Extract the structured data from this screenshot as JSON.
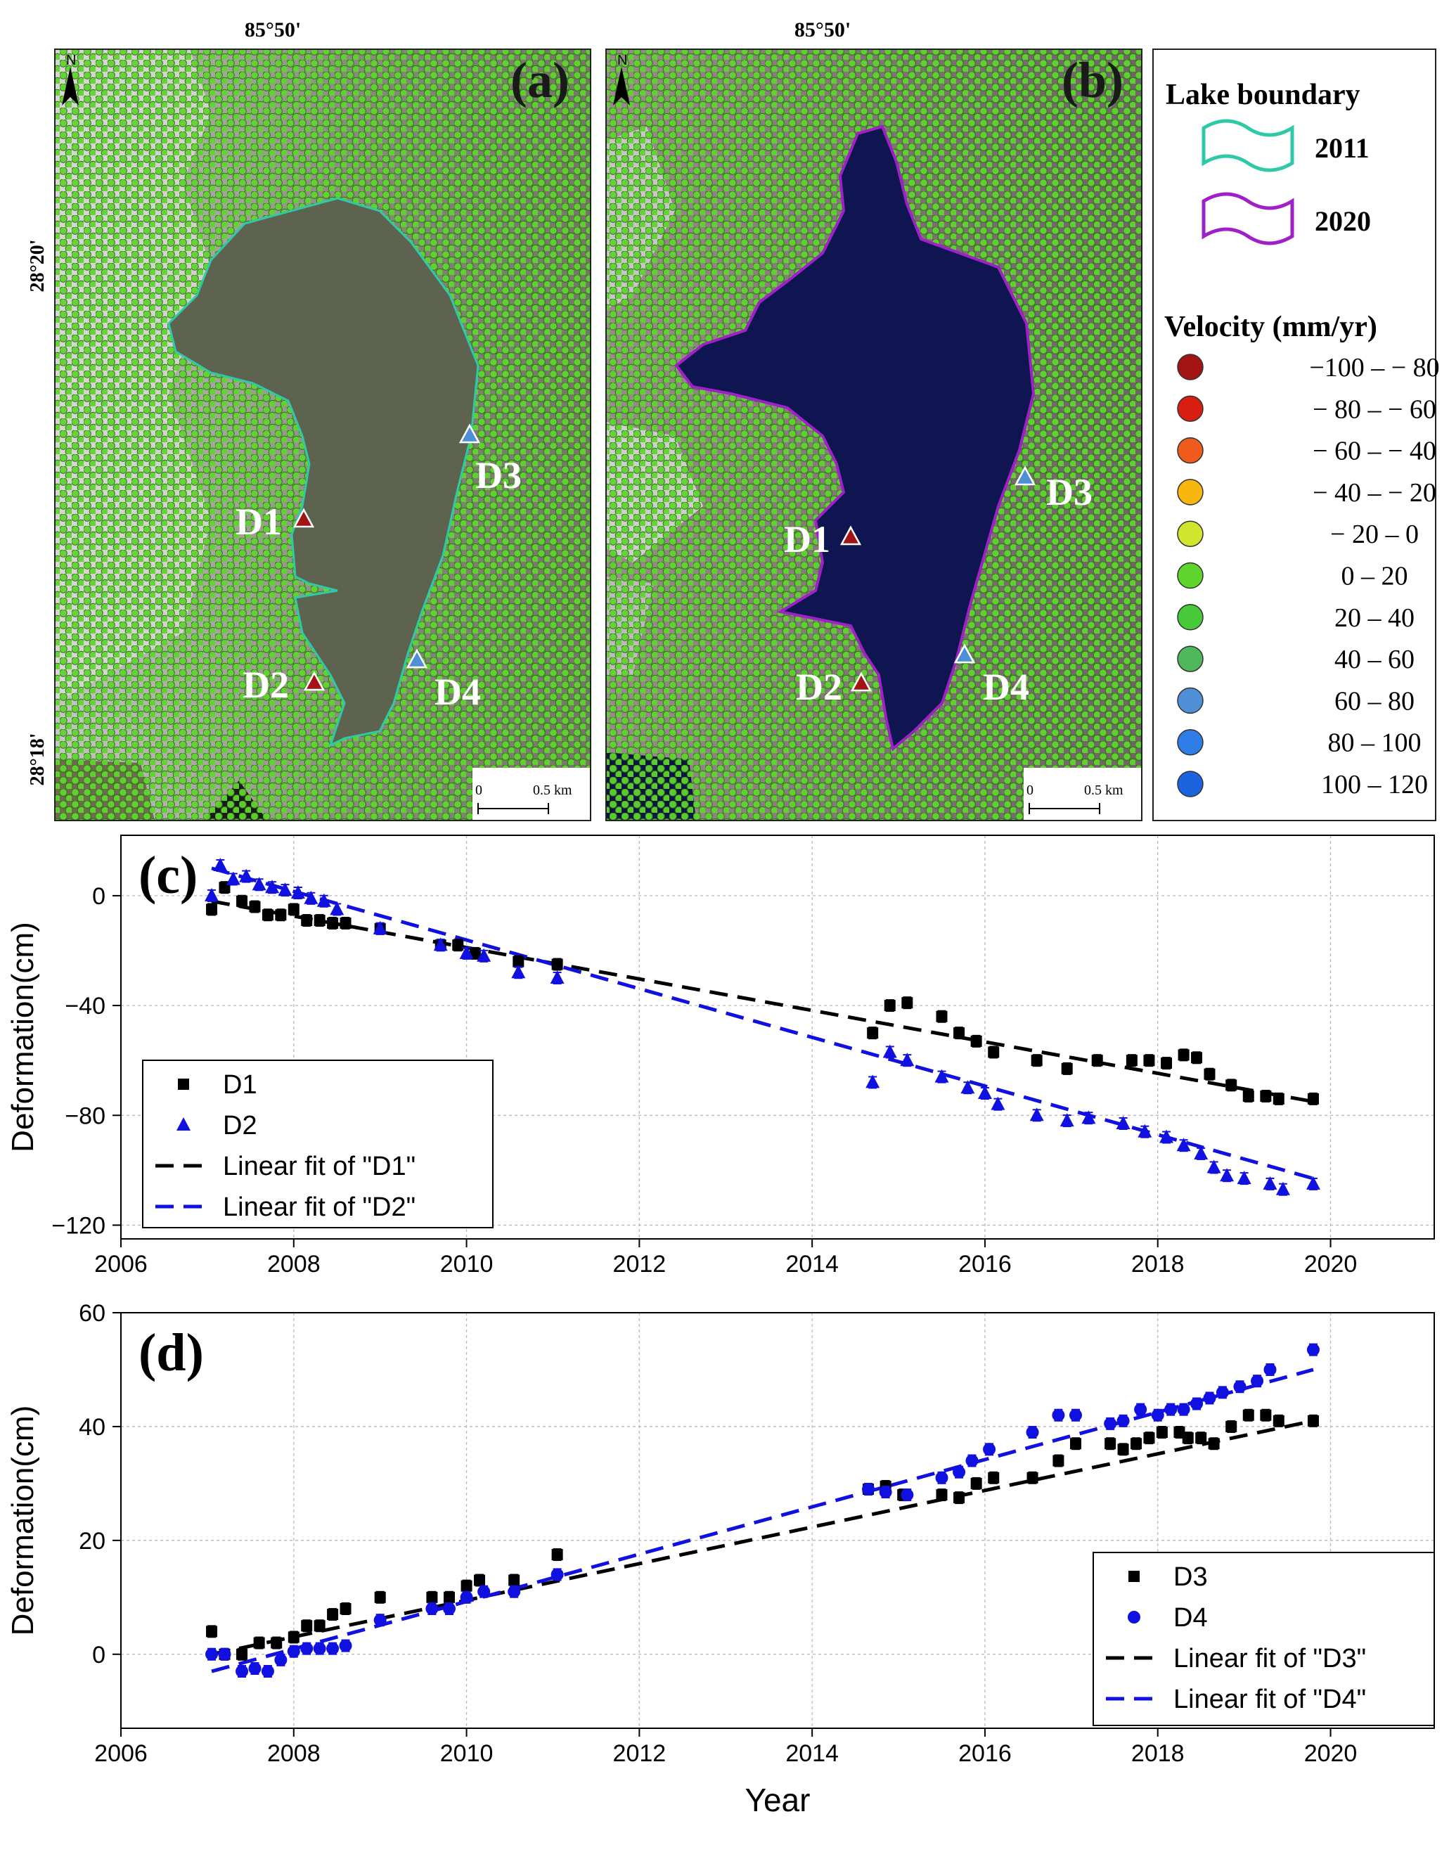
{
  "maps": {
    "a": {
      "panel_label": "(a)",
      "lon_label": "85°50'",
      "lat_top_label": "28°20'",
      "lat_bottom_label": "28°18'",
      "north_label": "N",
      "scale_zero": "0",
      "scale_len": "0.5 km",
      "markers": [
        "D1",
        "D2",
        "D3",
        "D4"
      ]
    },
    "b": {
      "panel_label": "(b)",
      "lon_label": "85°50'",
      "north_label": "N",
      "scale_zero": "0",
      "scale_len": "0.5 km",
      "markers": [
        "D1",
        "D2",
        "D3",
        "D4"
      ]
    }
  },
  "legend": {
    "lake_title": "Lake boundary",
    "lake_items": [
      {
        "label": "2011",
        "color": "#2ec9a7"
      },
      {
        "label": "2020",
        "color": "#a020c8"
      }
    ],
    "velocity_title": "Velocity (mm/yr)",
    "velocity_items": [
      {
        "label": "−100 – − 80",
        "color": "#a31515"
      },
      {
        "label": "− 80 – − 60",
        "color": "#d81e10"
      },
      {
        "label": "− 60 – − 40",
        "color": "#ee5b1d"
      },
      {
        "label": "− 40 – − 20",
        "color": "#f7b70e"
      },
      {
        "label": "− 20 –    0",
        "color": "#cfe62c"
      },
      {
        "label": "0 –  20",
        "color": "#5ed52d"
      },
      {
        "label": "20 –  40",
        "color": "#48c93a"
      },
      {
        "label": "40 –  60",
        "color": "#4fb85b"
      },
      {
        "label": "60 –  80",
        "color": "#4e8fd6"
      },
      {
        "label": "80 – 100",
        "color": "#2f7de6"
      },
      {
        "label": "100 – 120",
        "color": "#1c63e0"
      }
    ]
  },
  "chart_data": [
    {
      "panel_label": "(c)",
      "type": "scatter",
      "xlabel": "",
      "ylabel": "Deformation(cm)",
      "xlim": [
        2006,
        2021.2
      ],
      "ylim": [
        -125,
        22
      ],
      "xticks": [
        2006,
        2008,
        2010,
        2012,
        2014,
        2016,
        2018,
        2020
      ],
      "yticks": [
        0,
        -40,
        -80,
        -120
      ],
      "ytick_labels": [
        "0",
        "−40",
        "−80",
        "−120"
      ],
      "legend_position": "bottom-left",
      "series": [
        {
          "name": "D1",
          "color": "#000000",
          "marker": "square",
          "x": [
            2007.05,
            2007.2,
            2007.4,
            2007.55,
            2007.7,
            2007.85,
            2008.0,
            2008.15,
            2008.3,
            2008.45,
            2008.6,
            2009.0,
            2009.7,
            2009.9,
            2010.1,
            2010.6,
            2011.05,
            2014.7,
            2014.9,
            2015.1,
            2015.5,
            2015.7,
            2015.9,
            2016.1,
            2016.6,
            2016.95,
            2017.3,
            2017.7,
            2017.9,
            2018.1,
            2018.3,
            2018.45,
            2018.6,
            2018.85,
            2019.05,
            2019.25,
            2019.4,
            2019.8
          ],
          "y": [
            -5,
            3,
            -2,
            -4,
            -7,
            -7,
            -5,
            -9,
            -9,
            -10,
            -10,
            -12,
            -18,
            -18,
            -21,
            -24,
            -25,
            -50,
            -40,
            -39,
            -44,
            -50,
            -53,
            -57,
            -60,
            -63,
            -60,
            -60,
            -60,
            -61,
            -58,
            -59,
            -65,
            -69,
            -73,
            -73,
            -74,
            -74
          ]
        },
        {
          "name": "D2",
          "color": "#1010e0",
          "marker": "triangle",
          "x": [
            2007.05,
            2007.15,
            2007.3,
            2007.45,
            2007.6,
            2007.75,
            2007.9,
            2008.05,
            2008.2,
            2008.35,
            2008.5,
            2009.0,
            2009.7,
            2010.0,
            2010.2,
            2010.6,
            2011.05,
            2014.7,
            2014.9,
            2015.1,
            2015.5,
            2015.8,
            2016.0,
            2016.15,
            2016.6,
            2016.95,
            2017.2,
            2017.6,
            2017.85,
            2018.1,
            2018.3,
            2018.5,
            2018.65,
            2018.8,
            2019.0,
            2019.3,
            2019.45,
            2019.8
          ],
          "y": [
            0,
            11,
            6,
            7,
            4,
            3,
            2,
            1,
            -1,
            -2,
            -5,
            -12,
            -18,
            -21,
            -22,
            -28,
            -30,
            -68,
            -57,
            -60,
            -66,
            -70,
            -72,
            -76,
            -80,
            -82,
            -81,
            -83,
            -86,
            -88,
            -91,
            -94,
            -99,
            -102,
            -103,
            -105,
            -107,
            -105
          ]
        },
        {
          "name": "Linear fit of \"D1\"",
          "color": "#000000",
          "style": "dashed",
          "x": [
            2007.05,
            2019.8
          ],
          "y": [
            -2,
            -75
          ]
        },
        {
          "name": "Linear fit of \"D2\"",
          "color": "#1010e0",
          "style": "dashed",
          "x": [
            2007.05,
            2019.8
          ],
          "y": [
            10,
            -103
          ]
        }
      ]
    },
    {
      "panel_label": "(d)",
      "type": "scatter",
      "xlabel": "Year",
      "ylabel": "Deformation(cm)",
      "xlim": [
        2006,
        2021.2
      ],
      "ylim": [
        -13,
        60
      ],
      "xticks": [
        2006,
        2008,
        2010,
        2012,
        2014,
        2016,
        2018,
        2020
      ],
      "yticks": [
        0,
        20,
        40,
        60
      ],
      "ytick_labels": [
        "0",
        "20",
        "40",
        "60"
      ],
      "legend_position": "bottom-right",
      "series": [
        {
          "name": "D3",
          "color": "#000000",
          "marker": "square",
          "x": [
            2007.05,
            2007.2,
            2007.4,
            2007.6,
            2007.8,
            2008.0,
            2008.15,
            2008.3,
            2008.45,
            2008.6,
            2009.0,
            2009.6,
            2009.8,
            2010.0,
            2010.15,
            2010.55,
            2011.05,
            2014.65,
            2014.85,
            2015.05,
            2015.5,
            2015.7,
            2015.9,
            2016.1,
            2016.55,
            2016.85,
            2017.05,
            2017.45,
            2017.6,
            2017.75,
            2017.9,
            2018.05,
            2018.25,
            2018.35,
            2018.5,
            2018.65,
            2018.85,
            2019.05,
            2019.25,
            2019.4,
            2019.8
          ],
          "y": [
            4,
            0,
            0,
            2,
            2,
            3,
            5,
            5,
            7,
            8,
            10,
            10,
            10,
            12,
            13,
            13,
            17.5,
            29,
            29.5,
            28,
            28,
            27.5,
            30,
            31,
            31,
            34,
            37,
            37,
            36,
            37,
            38,
            39,
            39,
            38,
            38,
            37,
            40,
            42,
            42,
            41,
            41
          ]
        },
        {
          "name": "D4",
          "color": "#1010e0",
          "marker": "circle",
          "x": [
            2007.05,
            2007.2,
            2007.4,
            2007.55,
            2007.7,
            2007.85,
            2008.0,
            2008.15,
            2008.3,
            2008.45,
            2008.6,
            2009.0,
            2009.6,
            2009.8,
            2010.0,
            2010.2,
            2010.55,
            2011.05,
            2014.65,
            2014.85,
            2015.1,
            2015.5,
            2015.7,
            2015.85,
            2016.05,
            2016.55,
            2016.85,
            2017.05,
            2017.45,
            2017.6,
            2017.8,
            2018.0,
            2018.15,
            2018.3,
            2018.45,
            2018.6,
            2018.75,
            2018.95,
            2019.15,
            2019.3,
            2019.8
          ],
          "y": [
            0,
            0,
            -3,
            -2.5,
            -3,
            -1,
            0.5,
            1,
            1,
            1,
            1.5,
            6,
            8,
            8,
            10,
            11,
            11,
            14,
            29,
            28.5,
            28,
            31,
            32,
            34,
            36,
            39,
            42,
            42,
            40.5,
            41,
            43,
            42,
            43,
            43,
            44,
            45,
            46,
            47,
            48,
            50,
            53.5
          ]
        },
        {
          "name": "Linear fit of \"D3\"",
          "color": "#000000",
          "style": "dashed",
          "x": [
            2007.05,
            2019.8
          ],
          "y": [
            0,
            41
          ]
        },
        {
          "name": "Linear fit of \"D4\"",
          "color": "#1010e0",
          "style": "dashed",
          "x": [
            2007.05,
            2019.8
          ],
          "y": [
            -3,
            50
          ]
        }
      ]
    }
  ]
}
